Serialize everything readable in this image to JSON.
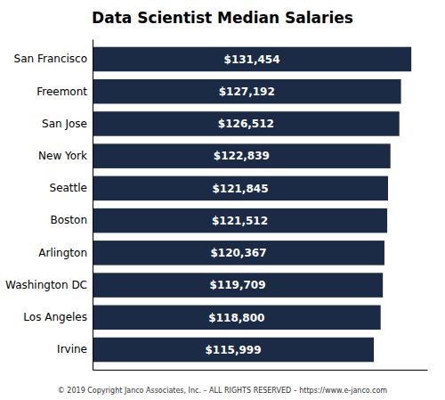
{
  "chart_data": {
    "type": "bar",
    "orientation": "horizontal",
    "title": "Data Scientist Median Salaries",
    "categories": [
      "San Francisco",
      "Freemont",
      "San Jose",
      "New York",
      "Seattle",
      "Boston",
      "Arlington",
      "Washington DC",
      "Los Angeles",
      "Irvine"
    ],
    "values": [
      131454,
      127192,
      126512,
      122839,
      121845,
      121512,
      120367,
      119709,
      118800,
      115999
    ],
    "value_labels": [
      "$131,454",
      "$127,192",
      "$126,512",
      "$122,839",
      "$121,845",
      "$121,512",
      "$120,367",
      "$119,709",
      "$118,800",
      "$115,999"
    ],
    "data_labels": true,
    "color": "#1b2a45",
    "xlim": [
      0,
      138000
    ],
    "tick_labels": "y",
    "annotations": [
      "© 2019 Copyright Janco Associates, Inc. – ALL RIGHTS RESERVED – https://www.e-janco.com"
    ]
  }
}
